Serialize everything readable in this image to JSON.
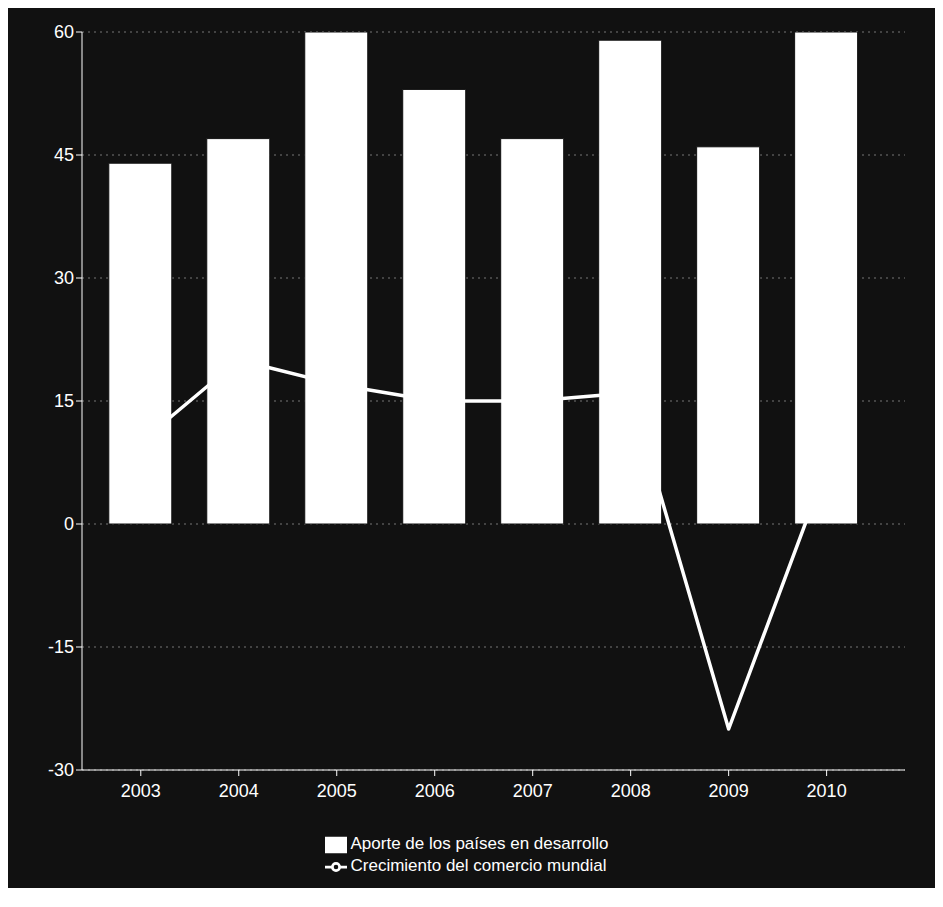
{
  "chart_data": {
    "type": "bar",
    "x": [
      2003,
      2004,
      2005,
      2006,
      2007,
      2008,
      2009,
      2010
    ],
    "xlim": [
      2002.4,
      2010.8
    ],
    "xticks": [
      2003,
      2004,
      2005,
      2006,
      2007,
      2008,
      2009,
      2010
    ],
    "ylim": [
      -30,
      60
    ],
    "yticks": [
      -30,
      -15,
      0,
      15,
      30,
      45,
      60
    ],
    "grid": true,
    "legend": "bottom",
    "series": [
      {
        "name": "Aporte de los países en desarrollo",
        "type": "bar",
        "color": "#ffffff",
        "values": [
          44,
          47,
          60,
          53,
          47,
          59,
          46,
          60
        ]
      },
      {
        "name": "Crecimiento del comercio mundial",
        "type": "line",
        "color": "#ffffff",
        "values": [
          10,
          20,
          17,
          15,
          15,
          16,
          -25,
          7
        ]
      }
    ]
  }
}
